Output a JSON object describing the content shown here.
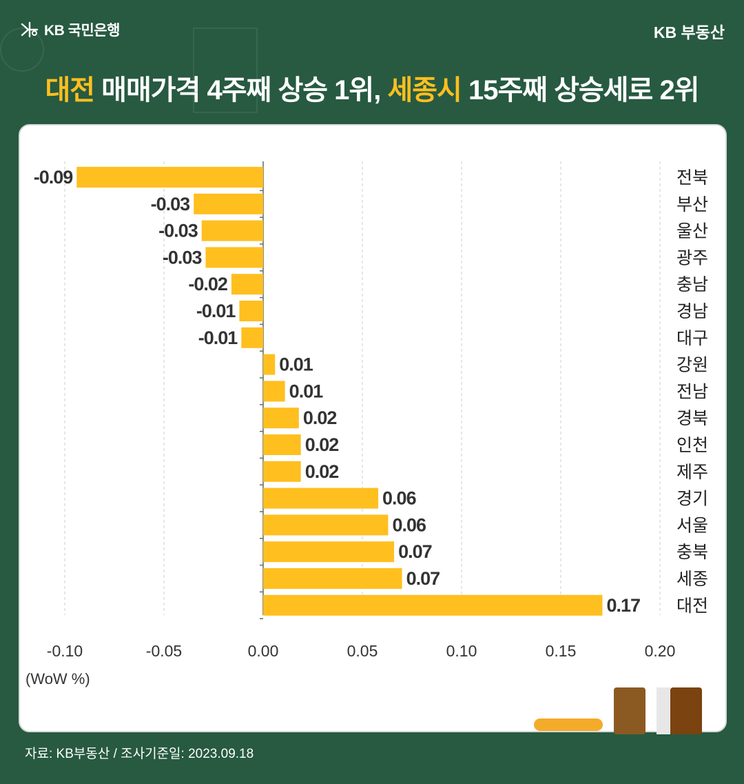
{
  "header": {
    "logo_text": "KB 국민은행",
    "brand": "KB 부동산"
  },
  "headline": {
    "part1": "대전",
    "part2": " 매매가격 4주째 상승 1위, ",
    "part3": "세종시",
    "part4": " 15주째 상승세로 2위"
  },
  "colors": {
    "background": "#275a41",
    "bar": "#ffbf1f",
    "accent": "#ffbf1f",
    "card": "#ffffff"
  },
  "chart_data": {
    "type": "bar",
    "orientation": "horizontal",
    "categories": [
      "전북",
      "부산",
      "울산",
      "광주",
      "충남",
      "경남",
      "대구",
      "강원",
      "전남",
      "경북",
      "인천",
      "제주",
      "경기",
      "서울",
      "충북",
      "세종",
      "대전"
    ],
    "values": [
      -0.094,
      -0.035,
      -0.031,
      -0.029,
      -0.016,
      -0.012,
      -0.011,
      0.006,
      0.011,
      0.018,
      0.019,
      0.019,
      0.058,
      0.063,
      0.066,
      0.07,
      0.171
    ],
    "value_labels": [
      "-0.09",
      "-0.03",
      "-0.03",
      "-0.03",
      "-0.02",
      "-0.01",
      "-0.01",
      "0.01",
      "0.01",
      "0.02",
      "0.02",
      "0.02",
      "0.06",
      "0.06",
      "0.07",
      "0.07",
      "0.17"
    ],
    "xlim": [
      -0.1,
      0.2
    ],
    "x_ticks": [
      "-0.10",
      "-0.05",
      "0.00",
      "0.05",
      "0.10",
      "0.15",
      "0.20"
    ],
    "unit": "(WoW %)",
    "grid": "vertical dashed"
  },
  "footer": {
    "source": "자료: KB부동산 / 조사기준일: 2023.09.18"
  }
}
